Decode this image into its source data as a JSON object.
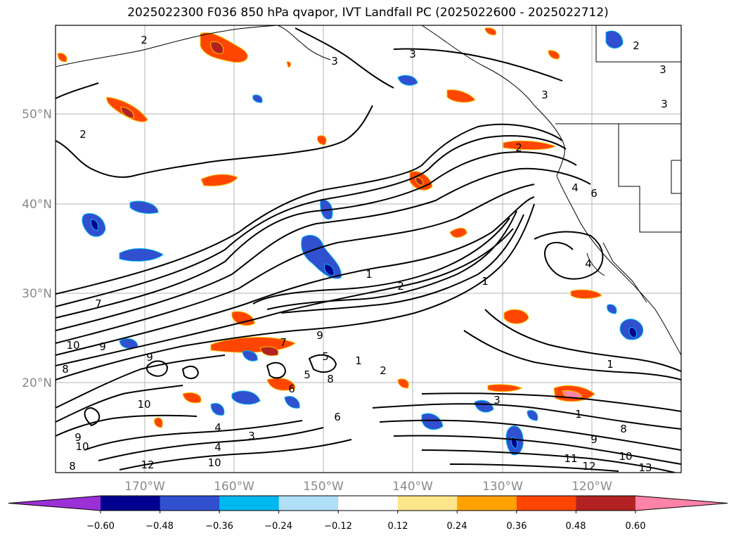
{
  "title": "2025022300 F036 850 hPa qvapor, IVT Landfall PC (2025022600 - 2025022712)",
  "lat_labels": [
    "50°N",
    "40°N",
    "30°N",
    "20°N"
  ],
  "lon_labels": [
    "170°W",
    "160°W",
    "150°W",
    "140°W",
    "130°W",
    "120°W"
  ],
  "colorbar": {
    "extend": "both",
    "colors": [
      "#9b30d6",
      "#000090",
      "#3050d0",
      "#00b8f0",
      "#b0e0f8",
      "#ffffff",
      "#fde58a",
      "#ffa200",
      "#ff4500",
      "#b22222",
      "#ff82a8"
    ],
    "ticks": [
      "−0.60",
      "−0.48",
      "−0.36",
      "−0.24",
      "−0.12",
      "0.12",
      "0.24",
      "0.36",
      "0.48",
      "0.60"
    ]
  },
  "contour_labels": [
    "2",
    "3",
    "3",
    "2",
    "3",
    "3",
    "2",
    "2",
    "3",
    "1",
    "2",
    "1",
    "1",
    "7",
    "9",
    "10",
    "9",
    "8",
    "7",
    "8",
    "5",
    "1",
    "2",
    "4",
    "6",
    "4",
    "1",
    "3",
    "4",
    "8",
    "9",
    "10",
    "11",
    "12",
    "13",
    "10",
    "12",
    "10",
    "10",
    "9",
    "8",
    "6",
    "4",
    "9",
    "3",
    "6",
    "5"
  ]
}
